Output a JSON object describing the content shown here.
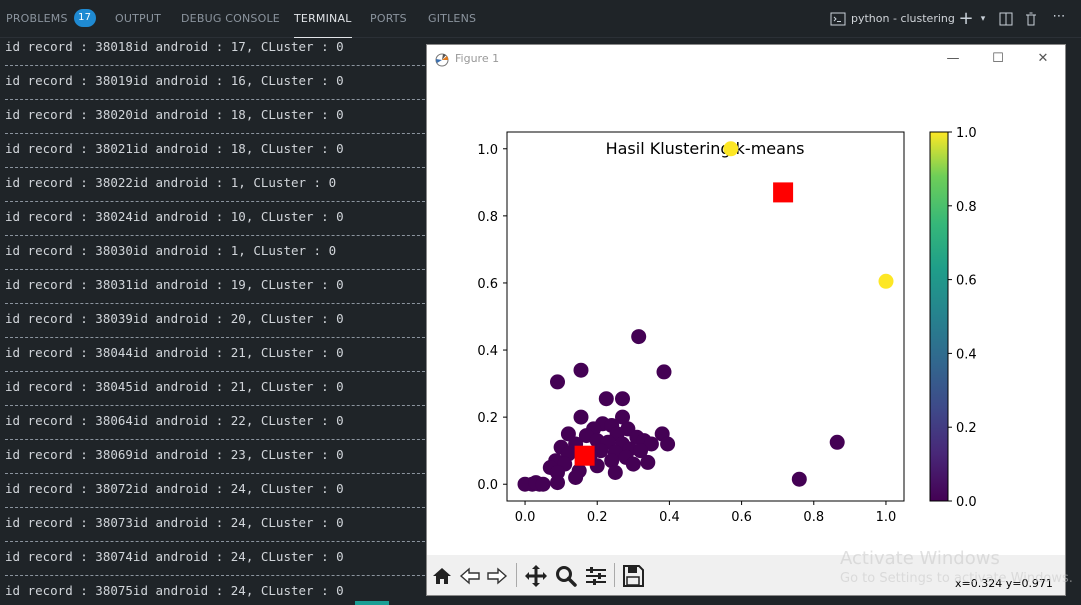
{
  "panel_tabs": [
    {
      "label": "PROBLEMS",
      "badge": "17"
    },
    {
      "label": "OUTPUT"
    },
    {
      "label": "DEBUG CONSOLE"
    },
    {
      "label": "TERMINAL"
    },
    {
      "label": "PORTS"
    },
    {
      "label": "GITLENS"
    }
  ],
  "terminal_name": "python - clustering",
  "terminal_lines": [
    "id record : 38018id android : 17, CLuster : 0",
    "id record : 38019id android : 16, CLuster : 0",
    "id record : 38020id android : 18, CLuster : 0",
    "id record : 38021id android : 18, CLuster : 0",
    "id record : 38022id android : 1, CLuster : 0",
    "id record : 38024id android : 10, CLuster : 0",
    "id record : 38030id android : 1, CLuster : 0",
    "id record : 38031id android : 19, CLuster : 0",
    "id record : 38039id android : 20, CLuster : 0",
    "id record : 38044id android : 21, CLuster : 0",
    "id record : 38045id android : 21, CLuster : 0",
    "id record : 38064id android : 22, CLuster : 0",
    "id record : 38069id android : 23, CLuster : 0",
    "id record : 38072id android : 24, CLuster : 0",
    "id record : 38073id android : 24, CLuster : 0",
    "id record : 38074id android : 24, CLuster : 0",
    "id record : 38075id android : 24, CLuster : 0"
  ],
  "figure": {
    "window_title": "Figure 1",
    "coords_readout": "x=0.324 y=0.971"
  },
  "watermark": {
    "line1": "Activate Windows",
    "line2": "Go to Settings to activate Windows."
  },
  "chart_data": {
    "type": "scatter",
    "title": "Hasil Klustering k-means",
    "xlabel": "",
    "ylabel": "",
    "xlim": [
      -0.05,
      1.05
    ],
    "ylim": [
      -0.05,
      1.05
    ],
    "xticks": [
      "0.0",
      "0.2",
      "0.4",
      "0.6",
      "0.8",
      "1.0"
    ],
    "yticks": [
      "0.0",
      "0.2",
      "0.4",
      "0.6",
      "0.8",
      "1.0"
    ],
    "colorbar_ticks": [
      "0.0",
      "0.2",
      "0.4",
      "0.6",
      "0.8",
      "1.0"
    ],
    "colormap": "viridis",
    "cluster_colors": {
      "0": "#440154",
      "1": "#fde725"
    },
    "centroid_color": "#ff0000",
    "grid": false,
    "points": [
      {
        "x": 0.57,
        "y": 1.0,
        "cluster": 1
      },
      {
        "x": 1.0,
        "y": 0.605,
        "cluster": 1
      },
      {
        "x": 0.315,
        "y": 0.44,
        "cluster": 0
      },
      {
        "x": 0.155,
        "y": 0.34,
        "cluster": 0
      },
      {
        "x": 0.385,
        "y": 0.335,
        "cluster": 0
      },
      {
        "x": 0.09,
        "y": 0.305,
        "cluster": 0
      },
      {
        "x": 0.225,
        "y": 0.255,
        "cluster": 0
      },
      {
        "x": 0.27,
        "y": 0.255,
        "cluster": 0
      },
      {
        "x": 0.155,
        "y": 0.2,
        "cluster": 0
      },
      {
        "x": 0.27,
        "y": 0.2,
        "cluster": 0
      },
      {
        "x": 0.215,
        "y": 0.18,
        "cluster": 0
      },
      {
        "x": 0.24,
        "y": 0.175,
        "cluster": 0
      },
      {
        "x": 0.19,
        "y": 0.165,
        "cluster": 0
      },
      {
        "x": 0.285,
        "y": 0.165,
        "cluster": 0
      },
      {
        "x": 0.255,
        "y": 0.15,
        "cluster": 0
      },
      {
        "x": 0.12,
        "y": 0.15,
        "cluster": 0
      },
      {
        "x": 0.17,
        "y": 0.145,
        "cluster": 0
      },
      {
        "x": 0.31,
        "y": 0.14,
        "cluster": 0
      },
      {
        "x": 0.38,
        "y": 0.15,
        "cluster": 0
      },
      {
        "x": 0.33,
        "y": 0.13,
        "cluster": 0
      },
      {
        "x": 0.35,
        "y": 0.12,
        "cluster": 0
      },
      {
        "x": 0.395,
        "y": 0.12,
        "cluster": 0
      },
      {
        "x": 0.2,
        "y": 0.13,
        "cluster": 0
      },
      {
        "x": 0.23,
        "y": 0.125,
        "cluster": 0
      },
      {
        "x": 0.27,
        "y": 0.12,
        "cluster": 0
      },
      {
        "x": 0.14,
        "y": 0.12,
        "cluster": 0
      },
      {
        "x": 0.1,
        "y": 0.11,
        "cluster": 0
      },
      {
        "x": 0.29,
        "y": 0.105,
        "cluster": 0
      },
      {
        "x": 0.32,
        "y": 0.1,
        "cluster": 0
      },
      {
        "x": 0.21,
        "y": 0.1,
        "cluster": 0
      },
      {
        "x": 0.25,
        "y": 0.095,
        "cluster": 0
      },
      {
        "x": 0.12,
        "y": 0.09,
        "cluster": 0
      },
      {
        "x": 0.18,
        "y": 0.085,
        "cluster": 0
      },
      {
        "x": 0.28,
        "y": 0.08,
        "cluster": 0
      },
      {
        "x": 0.24,
        "y": 0.07,
        "cluster": 0
      },
      {
        "x": 0.34,
        "y": 0.065,
        "cluster": 0
      },
      {
        "x": 0.3,
        "y": 0.06,
        "cluster": 0
      },
      {
        "x": 0.085,
        "y": 0.07,
        "cluster": 0
      },
      {
        "x": 0.11,
        "y": 0.06,
        "cluster": 0
      },
      {
        "x": 0.2,
        "y": 0.055,
        "cluster": 0
      },
      {
        "x": 0.07,
        "y": 0.05,
        "cluster": 0
      },
      {
        "x": 0.15,
        "y": 0.04,
        "cluster": 0
      },
      {
        "x": 0.25,
        "y": 0.035,
        "cluster": 0
      },
      {
        "x": 0.09,
        "y": 0.035,
        "cluster": 0
      },
      {
        "x": 0.14,
        "y": 0.02,
        "cluster": 0
      },
      {
        "x": 0.09,
        "y": 0.005,
        "cluster": 0
      },
      {
        "x": 0.04,
        "y": 0.0,
        "cluster": 0
      },
      {
        "x": 0.02,
        "y": 0.0,
        "cluster": 0
      },
      {
        "x": 0.0,
        "y": 0.0,
        "cluster": 0
      },
      {
        "x": 0.03,
        "y": 0.005,
        "cluster": 0
      },
      {
        "x": 0.05,
        "y": 0.0,
        "cluster": 0
      },
      {
        "x": 0.865,
        "y": 0.125,
        "cluster": 0
      },
      {
        "x": 0.76,
        "y": 0.015,
        "cluster": 0
      }
    ],
    "centroids": [
      {
        "x": 0.165,
        "y": 0.085
      },
      {
        "x": 0.715,
        "y": 0.87
      }
    ]
  }
}
